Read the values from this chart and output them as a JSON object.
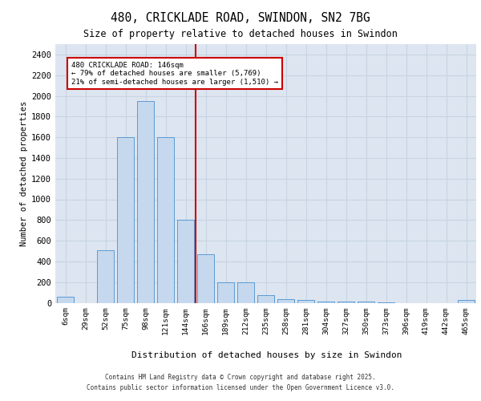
{
  "title_line1": "480, CRICKLADE ROAD, SWINDON, SN2 7BG",
  "title_line2": "Size of property relative to detached houses in Swindon",
  "xlabel": "Distribution of detached houses by size in Swindon",
  "ylabel": "Number of detached properties",
  "categories": [
    "6sqm",
    "29sqm",
    "52sqm",
    "75sqm",
    "98sqm",
    "121sqm",
    "144sqm",
    "166sqm",
    "189sqm",
    "212sqm",
    "235sqm",
    "258sqm",
    "281sqm",
    "304sqm",
    "327sqm",
    "350sqm",
    "373sqm",
    "396sqm",
    "419sqm",
    "442sqm",
    "465sqm"
  ],
  "values": [
    55,
    0,
    510,
    1600,
    1950,
    1600,
    800,
    470,
    195,
    195,
    70,
    35,
    25,
    15,
    12,
    10,
    7,
    0,
    0,
    0,
    30
  ],
  "bar_color": "#c5d8ed",
  "bar_edge_color": "#5b9bd5",
  "vline_color": "#cc0000",
  "vline_x": 6.5,
  "grid_color": "#c8d4e3",
  "bg_color": "#dde5f0",
  "ylim_max": 2500,
  "ytick_step": 200,
  "annotation_text": "480 CRICKLADE ROAD: 146sqm\n← 79% of detached houses are smaller (5,769)\n21% of semi-detached houses are larger (1,510) →",
  "annotation_box_color": "#ffffff",
  "annotation_box_edge": "#cc0000",
  "footer_line1": "Contains HM Land Registry data © Crown copyright and database right 2025.",
  "footer_line2": "Contains public sector information licensed under the Open Government Licence v3.0."
}
